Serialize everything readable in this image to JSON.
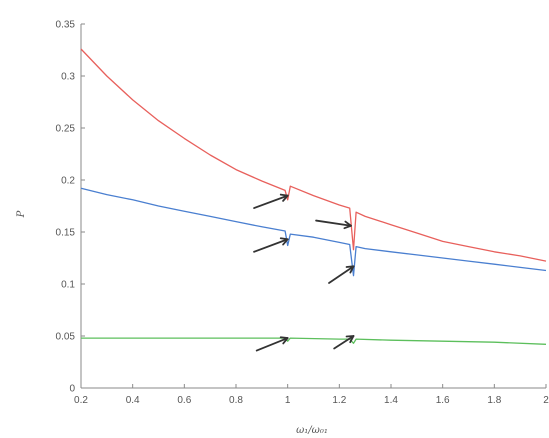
{
  "chart_data": {
    "type": "line",
    "title": "",
    "xlabel": "ω₁/ω₀₁",
    "ylabel": "P",
    "xlim": [
      0.2,
      2.0
    ],
    "ylim": [
      0,
      0.35
    ],
    "xticks": [
      "0.2",
      "0.4",
      "0.6",
      "0.8",
      "1",
      "1.2",
      "1.4",
      "1.6",
      "1.8",
      "2"
    ],
    "yticks": [
      "0",
      "0.05",
      "0.1",
      "0.15",
      "0.2",
      "0.25",
      "0.3",
      "0.35"
    ],
    "grid": false,
    "legend": "none",
    "series": [
      {
        "color": "#e8605c",
        "x": [
          0.2,
          0.3,
          0.4,
          0.5,
          0.6,
          0.7,
          0.8,
          0.9,
          0.99,
          1.0,
          1.01,
          1.1,
          1.2,
          1.24,
          1.255,
          1.265,
          1.3,
          1.4,
          1.5,
          1.6,
          1.7,
          1.8,
          1.9,
          2.0
        ],
        "y": [
          0.326,
          0.3,
          0.277,
          0.257,
          0.24,
          0.224,
          0.21,
          0.199,
          0.19,
          0.181,
          0.194,
          0.185,
          0.176,
          0.173,
          0.133,
          0.169,
          0.165,
          0.157,
          0.149,
          0.141,
          0.136,
          0.131,
          0.127,
          0.122
        ]
      },
      {
        "color": "#4a7fd0",
        "x": [
          0.2,
          0.3,
          0.4,
          0.5,
          0.6,
          0.7,
          0.8,
          0.9,
          0.99,
          1.0,
          1.01,
          1.1,
          1.2,
          1.24,
          1.255,
          1.265,
          1.3,
          1.4,
          1.5,
          1.6,
          1.7,
          1.8,
          1.9,
          2.0
        ],
        "y": [
          0.192,
          0.186,
          0.181,
          0.175,
          0.17,
          0.165,
          0.16,
          0.155,
          0.151,
          0.137,
          0.148,
          0.145,
          0.14,
          0.138,
          0.108,
          0.136,
          0.134,
          0.131,
          0.128,
          0.125,
          0.122,
          0.119,
          0.116,
          0.113
        ]
      },
      {
        "color": "#5cbf5c",
        "x": [
          0.2,
          0.4,
          0.6,
          0.8,
          0.99,
          1.0,
          1.01,
          1.2,
          1.24,
          1.255,
          1.265,
          1.4,
          1.6,
          1.8,
          2.0
        ],
        "y": [
          0.048,
          0.048,
          0.048,
          0.048,
          0.048,
          0.045,
          0.048,
          0.047,
          0.047,
          0.043,
          0.047,
          0.046,
          0.045,
          0.044,
          0.042
        ]
      }
    ],
    "arrows": [
      {
        "tip": [
          1.0,
          0.185
        ],
        "tail": [
          0.87,
          0.173
        ]
      },
      {
        "tip": [
          1.0,
          0.143
        ],
        "tail": [
          0.87,
          0.131
        ]
      },
      {
        "tip": [
          1.0,
          0.048
        ],
        "tail": [
          0.88,
          0.036
        ]
      },
      {
        "tip": [
          1.245,
          0.156
        ],
        "tail": [
          1.11,
          0.161
        ]
      },
      {
        "tip": [
          1.255,
          0.117
        ],
        "tail": [
          1.16,
          0.101
        ]
      },
      {
        "tip": [
          1.255,
          0.05
        ],
        "tail": [
          1.18,
          0.038
        ]
      }
    ]
  }
}
